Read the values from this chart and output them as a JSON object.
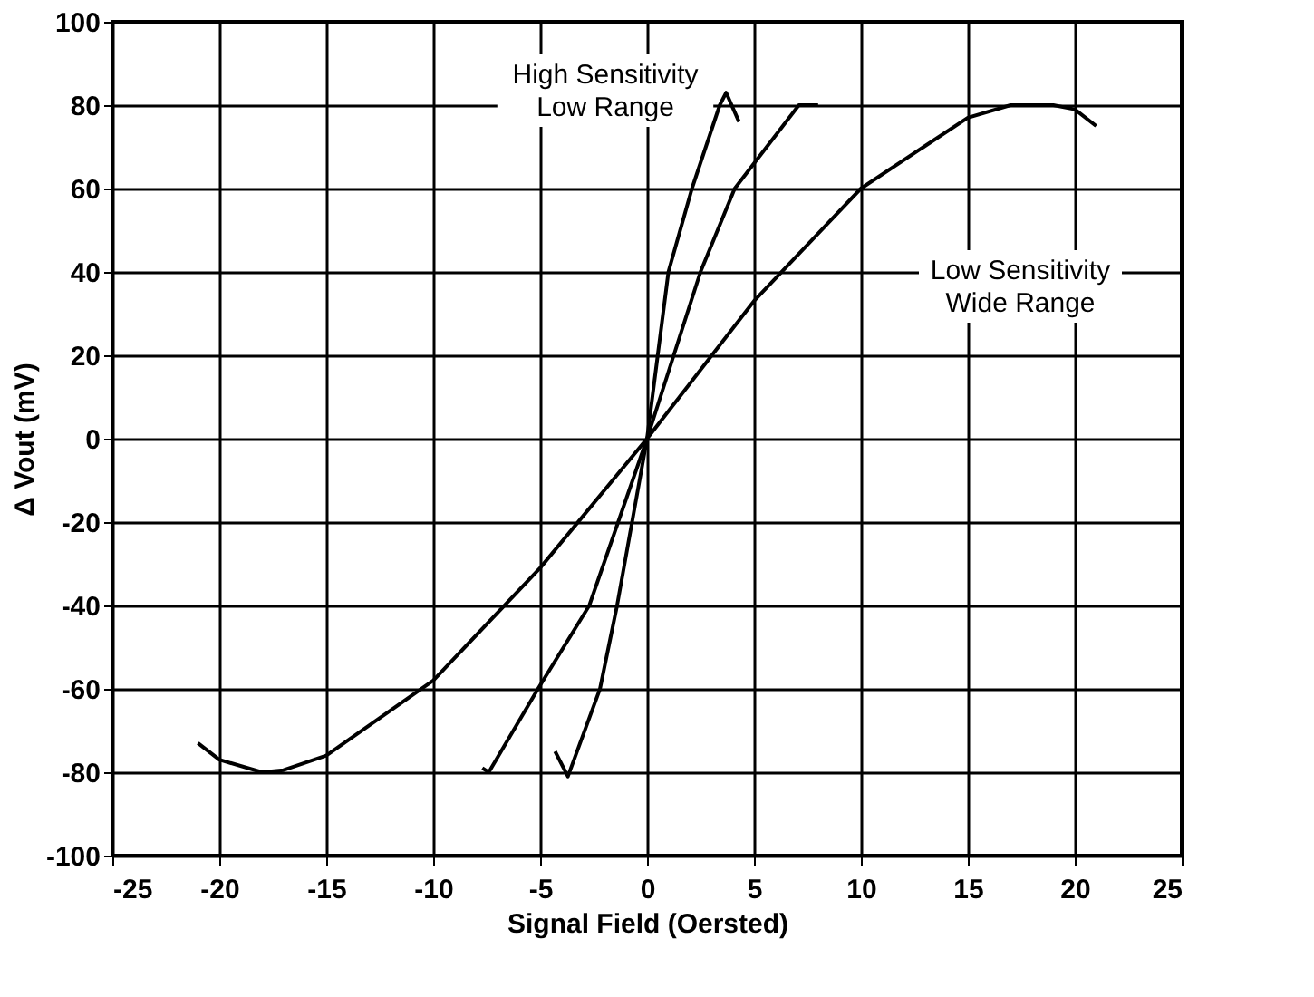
{
  "chart_data": {
    "type": "line",
    "xlabel": "Signal Field (Oersted)",
    "ylabel": "Δ Vout (mV)",
    "xlim": [
      -25,
      25
    ],
    "xticks": [
      -25,
      -20,
      -15,
      -10,
      -5,
      0,
      5,
      10,
      15,
      20,
      25
    ],
    "ylim": [
      -100,
      100
    ],
    "yticks": [
      -100,
      -80,
      -60,
      -40,
      -20,
      0,
      20,
      40,
      60,
      80,
      100
    ],
    "grid": true,
    "marker": "none",
    "line_style": "solid",
    "series": [
      {
        "color": "#000000",
        "x": [
          -21,
          -20,
          -18,
          -17,
          -15,
          -10,
          -5,
          0,
          5,
          10,
          15,
          17,
          19,
          20,
          21
        ],
        "values": [
          -73,
          -77,
          -80,
          -79.5,
          -76,
          -58,
          -31,
          0,
          33,
          60,
          77,
          80,
          80,
          79,
          75
        ]
      },
      {
        "color": "#000000",
        "x": [
          -7.7,
          -7.4,
          -5.1,
          -2.7,
          0,
          2.5,
          4.1,
          7.1,
          8
        ],
        "values": [
          -79,
          -80,
          -60,
          -40,
          0,
          40,
          60,
          80,
          80
        ]
      },
      {
        "color": "#000000",
        "x": [
          -4.3,
          -3.7,
          -2.2,
          -1.4,
          -0.7,
          0,
          0.5,
          1.0,
          2.1,
          3.4,
          3.7,
          4.3
        ],
        "values": [
          -75,
          -81,
          -60,
          -40,
          -20,
          0,
          20,
          40,
          60,
          80,
          83,
          76
        ]
      }
    ],
    "annotations": [
      "High Sensitivity\nLow Range",
      "Low Sensitivity\nWide Range"
    ]
  }
}
